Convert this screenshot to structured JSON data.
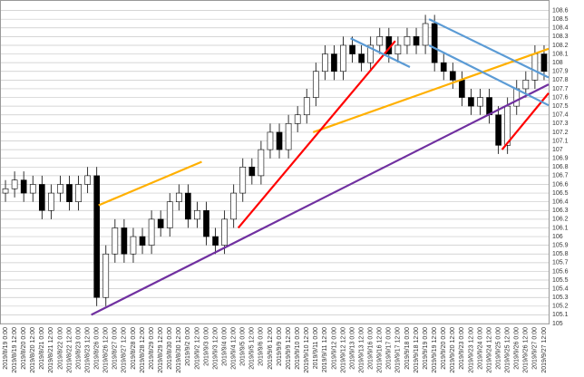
{
  "chart_data": {
    "type": "candlestick",
    "categories": [
      "2019/8/19 0:00",
      "2019/8/19 12:00",
      "2019/8/20 0:00",
      "2019/8/20 12:00",
      "2019/8/21 0:00",
      "2019/8/21 12:00",
      "2019/8/22 0:00",
      "2019/8/22 12:00",
      "2019/8/23 0:00",
      "2019/8/23 12:00",
      "2019/8/26 0:00",
      "2019/8/26 12:00",
      "2019/8/27 0:00",
      "2019/8/27 12:00",
      "2019/8/28 0:00",
      "2019/8/28 12:00",
      "2019/8/29 0:00",
      "2019/8/29 12:00",
      "2019/8/30 0:00",
      "2019/8/30 12:00",
      "2019/9/2 0:00",
      "2019/9/2 12:00",
      "2019/9/3 0:00",
      "2019/9/3 12:00",
      "2019/9/4 0:00",
      "2019/9/4 12:00",
      "2019/9/5 0:00",
      "2019/9/5 12:00",
      "2019/9/6 0:00",
      "2019/9/6 12:00",
      "2019/9/9 0:00",
      "2019/9/9 12:00",
      "2019/9/10 0:00",
      "2019/9/10 12:00",
      "2019/9/11 0:00",
      "2019/9/11 12:00",
      "2019/9/12 0:00",
      "2019/9/12 12:00",
      "2019/9/13 0:00",
      "2019/9/13 12:00",
      "2019/9/16 0:00",
      "2019/9/16 12:00",
      "2019/9/17 0:00",
      "2019/9/17 12:00",
      "2019/9/18 0:00",
      "2019/9/18 12:00",
      "2019/9/19 0:00",
      "2019/9/19 12:00",
      "2019/9/20 0:00",
      "2019/9/20 12:00",
      "2019/9/23 0:00",
      "2019/9/23 12:00",
      "2019/9/24 0:00",
      "2019/9/24 12:00",
      "2019/9/25 0:00",
      "2019/9/25 12:00",
      "2019/9/26 0:00",
      "2019/9/26 12:00",
      "2019/9/27 0:00",
      "2019/9/27 12:00"
    ],
    "open": [
      106.5,
      106.55,
      106.65,
      106.5,
      106.6,
      106.3,
      106.5,
      106.6,
      106.4,
      106.6,
      106.7,
      105.3,
      105.8,
      106.1,
      105.8,
      106.0,
      105.9,
      106.2,
      106.1,
      106.4,
      106.5,
      106.2,
      106.3,
      106.0,
      105.9,
      106.2,
      106.5,
      106.8,
      106.7,
      107.0,
      107.2,
      107.0,
      107.3,
      107.4,
      107.6,
      107.9,
      108.1,
      107.9,
      108.2,
      108.1,
      108.0,
      108.2,
      108.3,
      108.1,
      108.2,
      108.3,
      108.2,
      108.45,
      108.0,
      107.9,
      107.8,
      107.6,
      107.5,
      107.6,
      107.4,
      107.05,
      107.5,
      107.7,
      107.8,
      108.1
    ],
    "high": [
      106.65,
      106.75,
      106.75,
      106.7,
      106.7,
      106.6,
      106.7,
      106.7,
      106.7,
      106.8,
      106.8,
      105.9,
      106.2,
      106.2,
      106.1,
      106.1,
      106.3,
      106.3,
      106.5,
      106.6,
      106.6,
      106.4,
      106.4,
      106.1,
      106.3,
      106.6,
      106.9,
      106.9,
      107.1,
      107.3,
      107.3,
      107.4,
      107.5,
      107.7,
      108.0,
      108.2,
      108.2,
      108.3,
      108.3,
      108.2,
      108.3,
      108.4,
      108.4,
      108.3,
      108.4,
      108.4,
      108.55,
      108.55,
      108.1,
      108.0,
      107.9,
      107.7,
      107.7,
      107.7,
      107.5,
      107.6,
      107.8,
      107.9,
      108.2,
      108.2
    ],
    "low": [
      106.4,
      106.45,
      106.4,
      106.4,
      106.2,
      106.2,
      106.4,
      106.3,
      106.3,
      106.5,
      105.2,
      105.2,
      105.7,
      105.7,
      105.7,
      105.8,
      105.8,
      106.0,
      106.0,
      106.3,
      106.1,
      106.1,
      105.9,
      105.8,
      105.8,
      106.1,
      106.4,
      106.6,
      106.6,
      106.9,
      106.9,
      106.9,
      107.2,
      107.3,
      107.5,
      107.8,
      107.8,
      107.8,
      108.0,
      107.9,
      107.9,
      108.1,
      108.0,
      108.0,
      108.1,
      108.1,
      108.1,
      107.9,
      107.8,
      107.7,
      107.5,
      107.4,
      107.4,
      107.3,
      106.95,
      106.95,
      107.4,
      107.6,
      107.7,
      107.8
    ],
    "close": [
      106.55,
      106.65,
      106.5,
      106.6,
      106.3,
      106.5,
      106.6,
      106.4,
      106.6,
      106.7,
      105.3,
      105.8,
      106.1,
      105.8,
      106.0,
      105.9,
      106.2,
      106.1,
      106.4,
      106.5,
      106.2,
      106.3,
      106.0,
      105.9,
      106.2,
      106.5,
      106.8,
      106.7,
      107.0,
      107.2,
      107.0,
      107.3,
      107.4,
      107.6,
      107.9,
      108.1,
      107.9,
      108.2,
      108.1,
      108.0,
      108.2,
      108.3,
      108.1,
      108.2,
      108.3,
      108.2,
      108.45,
      108.0,
      107.9,
      107.8,
      107.6,
      107.5,
      107.6,
      107.4,
      107.05,
      107.5,
      107.7,
      107.8,
      108.1,
      107.9
    ],
    "ylim": [
      105,
      108.7
    ],
    "yticks": [
      105,
      105.1,
      105.2,
      105.3,
      105.4,
      105.5,
      105.6,
      105.7,
      105.8,
      105.9,
      106,
      106.1,
      106.2,
      106.3,
      106.4,
      106.5,
      106.6,
      106.7,
      106.8,
      106.9,
      107,
      107.1,
      107.2,
      107.3,
      107.4,
      107.5,
      107.6,
      107.7,
      107.8,
      107.9,
      108,
      108.1,
      108.2,
      108.3,
      108.4,
      108.5,
      108.6
    ],
    "grid": true,
    "trend_lines": [
      {
        "color": "#7030a0",
        "x": [
          9.4,
          59.5
        ],
        "y": [
          105.1,
          107.75
        ]
      },
      {
        "color": "#ffb000",
        "x": [
          10.2,
          21.5
        ],
        "y": [
          106.36,
          106.86
        ]
      },
      {
        "color": "#ffb000",
        "x": [
          33.7,
          59.5
        ],
        "y": [
          107.2,
          108.16
        ]
      },
      {
        "color": "#ff0000",
        "x": [
          25.5,
          42.7
        ],
        "y": [
          106.1,
          108.25
        ]
      },
      {
        "color": "#ff0000",
        "x": [
          54.4,
          59.5
        ],
        "y": [
          107.0,
          107.65
        ]
      },
      {
        "color": "#5b9bd5",
        "x": [
          37.8,
          44.3
        ],
        "y": [
          108.28,
          107.95
        ]
      },
      {
        "color": "#5b9bd5",
        "x": [
          46.4,
          59.5
        ],
        "y": [
          108.5,
          107.83
        ]
      },
      {
        "color": "#5b9bd5",
        "x": [
          46.4,
          59.5
        ],
        "y": [
          108.2,
          107.51
        ]
      }
    ]
  }
}
